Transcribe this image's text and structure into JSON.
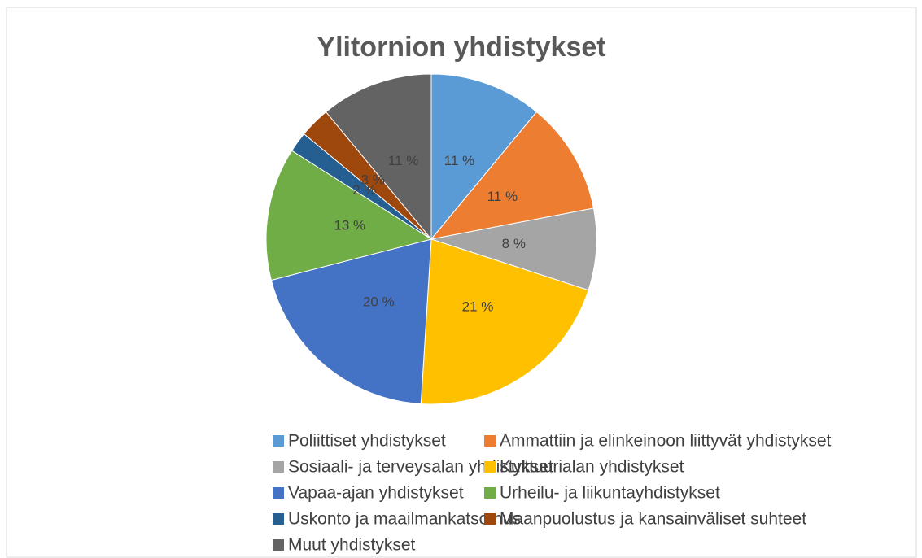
{
  "chart_data": {
    "type": "pie",
    "title": "Ylitornion yhdistykset",
    "categories": [
      "Poliittiset yhdistykset",
      "Ammattiin ja elinkeinoon liittyvät yhdistykset",
      "Sosiaali- ja terveysalan yhdistykset",
      "Kulttuurialan yhdistykset",
      "Vapaa-ajan yhdistykset",
      "Urheilu- ja liikuntayhdistykset",
      "Uskonto ja maailmankatsomus",
      "Maanpuolustus ja kansainväliset suhteet",
      "Muut yhdistykset"
    ],
    "values": [
      11,
      11,
      8,
      21,
      20,
      13,
      2,
      3,
      11
    ],
    "value_labels": [
      "11 %",
      "11 %",
      "8 %",
      "21 %",
      "20 %",
      "13 %",
      "2 %",
      "3 %",
      "11 %"
    ],
    "colors": [
      "#5b9bd5",
      "#ed7d31",
      "#a5a5a5",
      "#ffc000",
      "#4472c4",
      "#70ad47",
      "#255e91",
      "#9e480e",
      "#636363"
    ],
    "legend": "bottom"
  }
}
